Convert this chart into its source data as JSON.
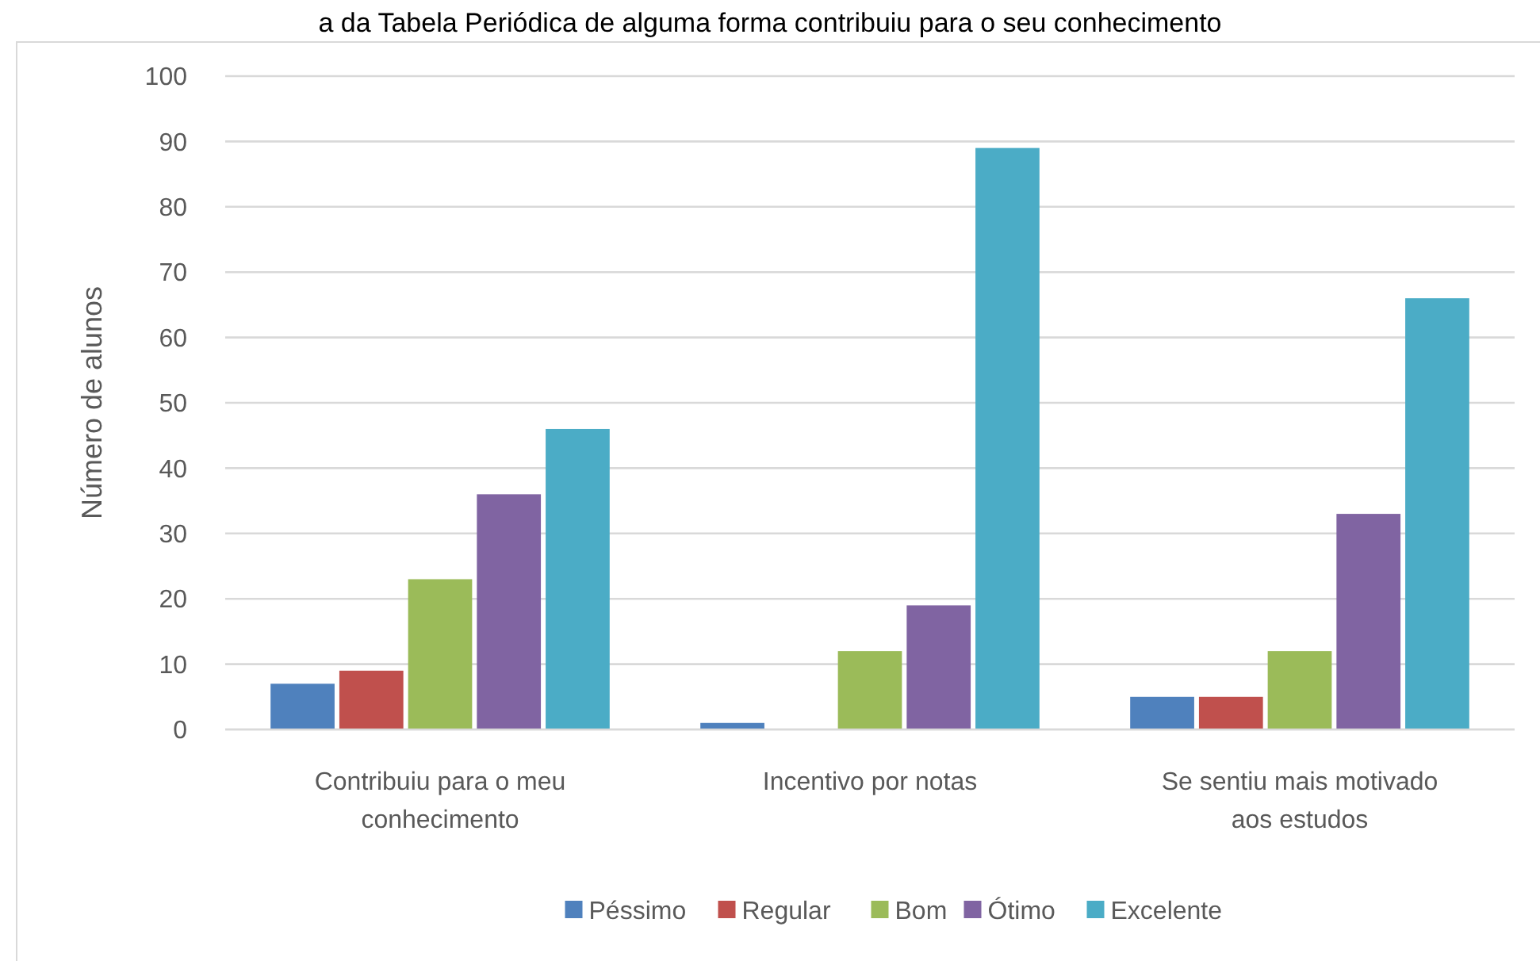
{
  "chart_data": {
    "type": "bar",
    "annotations": [
      "a da Tabela Periódica de alguma forma contribuiu para o seu conhecimento"
    ],
    "ylabel": "Número de alunos",
    "categories": [
      "Contribuiu para o meu conhecimento",
      "Incentivo por notas",
      "Se sentiu mais motivado aos estudos"
    ],
    "series": [
      {
        "name": "Péssimo",
        "color": "#4f81bd",
        "values": [
          7,
          1,
          5
        ]
      },
      {
        "name": "Regular",
        "color": "#c0504d",
        "values": [
          9,
          0,
          5
        ]
      },
      {
        "name": "Bom",
        "color": "#9bbb59",
        "values": [
          23,
          12,
          12
        ]
      },
      {
        "name": "Ótimo",
        "color": "#8064a2",
        "values": [
          36,
          19,
          33
        ]
      },
      {
        "name": "Excelente",
        "color": "#4bacc6",
        "values": [
          46,
          89,
          66
        ]
      }
    ],
    "ylim": [
      0,
      100
    ],
    "yticks": [
      0,
      10,
      20,
      30,
      40,
      50,
      60,
      70,
      80,
      90,
      100
    ],
    "grid": "y",
    "legend": "bottom"
  }
}
